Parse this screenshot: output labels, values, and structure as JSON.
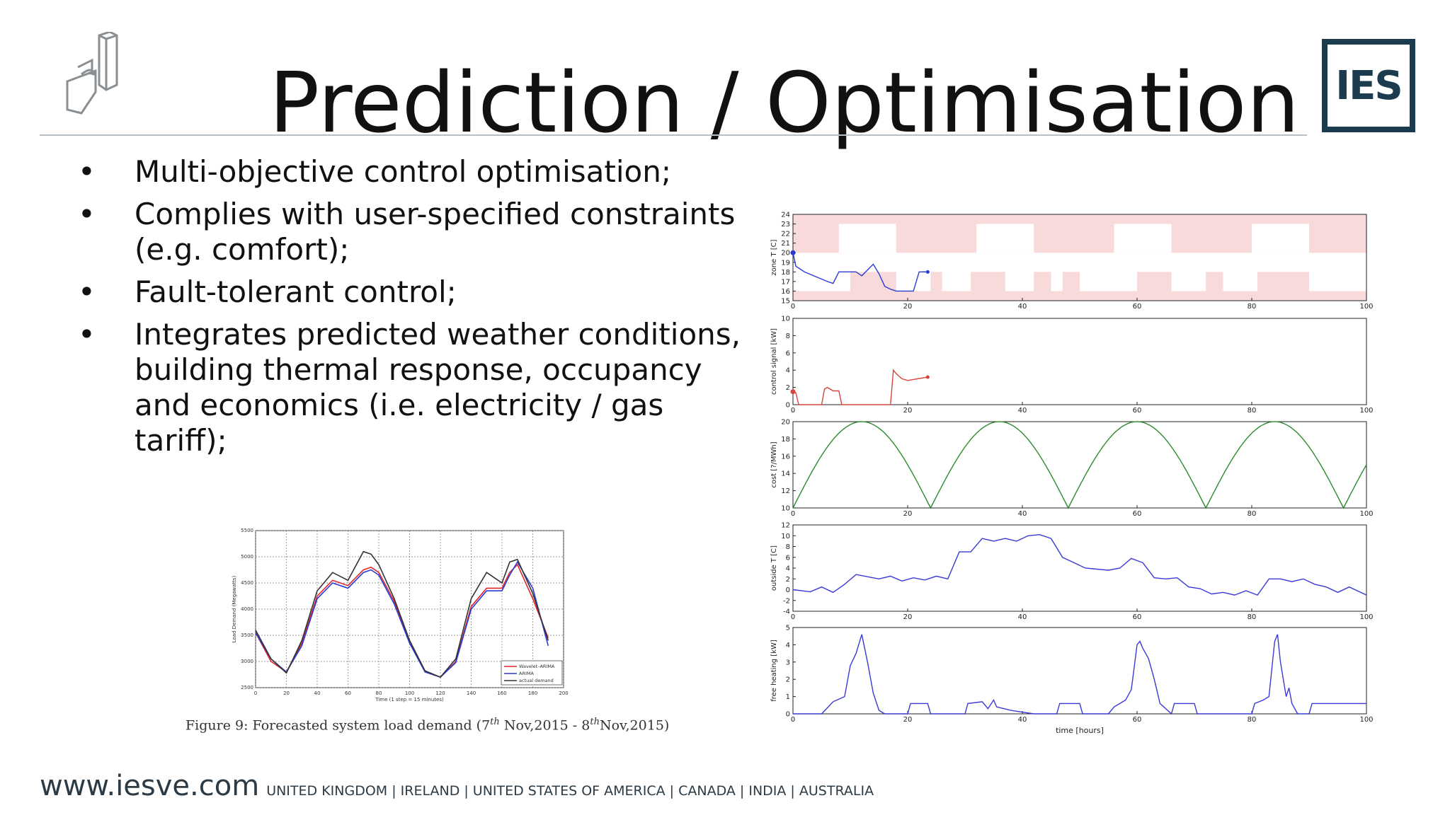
{
  "slide": {
    "title": "Prediction / Optimisation",
    "bullets": [
      "Multi-objective control optimisation;",
      "Complies with user-specified constraints (e.g. comfort);",
      "Fault-tolerant control;",
      "Integrates predicted weather conditions, building thermal response, occupancy and economics (i.e. electricity / gas tariff);"
    ],
    "bullet_symbol": "•",
    "logo_text": "IES",
    "footer": {
      "url": "www.iesve.com",
      "countries": "UNITED KINGDOM | IRELAND | UNITED STATES OF AMERICA | CANADA | INDIA | AUSTRALIA"
    },
    "figure_caption_parts": {
      "prefix": "Figure 9:  Forecasted system load demand (7",
      "sup1": "th",
      "mid": " Nov,2015 - 8",
      "sup2": "th",
      "suffix": "Nov,2015)"
    },
    "colors": {
      "brand": "#1b3b4f",
      "comfort_band": "#f9dada"
    }
  },
  "chart_data": [
    {
      "type": "line",
      "title": "",
      "xlabel": "Time (1 step = 15 minutes)",
      "ylabel": "Load Demand (Megawatts)",
      "xlim": [
        0,
        200
      ],
      "ylim": [
        2500,
        5500
      ],
      "x_ticks": [
        0,
        20,
        40,
        60,
        80,
        100,
        120,
        140,
        160,
        180,
        200
      ],
      "y_ticks": [
        2500,
        3000,
        3500,
        4000,
        4500,
        5000,
        5500
      ],
      "grid": true,
      "legend_position": "bottom-right",
      "x": [
        0,
        10,
        20,
        30,
        40,
        50,
        60,
        70,
        75,
        80,
        90,
        100,
        110,
        120,
        130,
        140,
        150,
        160,
        165,
        170,
        180,
        190
      ],
      "series": [
        {
          "name": "Wavelet–ARIMA",
          "color": "#e0262a",
          "values": [
            3550,
            3000,
            2800,
            3350,
            4250,
            4550,
            4450,
            4750,
            4800,
            4700,
            4150,
            3400,
            2820,
            2700,
            3000,
            4050,
            4400,
            4400,
            4700,
            4850,
            4200,
            3450
          ]
        },
        {
          "name": "ARIMA",
          "color": "#2a3ad6",
          "values": [
            3550,
            3050,
            2800,
            3300,
            4200,
            4500,
            4400,
            4700,
            4750,
            4650,
            4100,
            3350,
            2800,
            2700,
            2980,
            4000,
            4350,
            4350,
            4650,
            4900,
            4400,
            3300
          ]
        },
        {
          "name": "actual demand",
          "color": "#333333",
          "values": [
            3600,
            3050,
            2780,
            3400,
            4350,
            4700,
            4550,
            5100,
            5050,
            4850,
            4200,
            3400,
            2820,
            2700,
            3050,
            4200,
            4700,
            4500,
            4900,
            4950,
            4300,
            3400
          ]
        }
      ]
    },
    {
      "type": "line",
      "ylabel": "zone T [C]",
      "xlim": [
        0,
        100
      ],
      "ylim": [
        15,
        24
      ],
      "x_ticks": [
        0,
        20,
        40,
        60,
        80,
        100
      ],
      "y_ticks": [
        15,
        16,
        17,
        18,
        19,
        20,
        21,
        22,
        23,
        24
      ],
      "comfort_unavailable_upper": {
        "baseline": 20,
        "top": 24,
        "lowered_periods": [
          [
            8,
            18
          ],
          [
            32,
            42
          ],
          [
            56,
            66
          ],
          [
            80,
            90
          ]
        ],
        "lowered_to": 23
      },
      "comfort_unavailable_lower": {
        "baseline": 16,
        "bottom": 15,
        "raised_periods": [
          [
            10,
            18
          ],
          [
            31,
            37
          ],
          [
            60,
            66
          ],
          [
            81,
            90
          ]
        ],
        "raised_to": 18,
        "extra_periods": [
          [
            24,
            26
          ],
          [
            42,
            45
          ],
          [
            47,
            50
          ],
          [
            72,
            75
          ]
        ]
      },
      "series": [
        {
          "name": "",
          "color": "#2a3ad6",
          "x": [
            0,
            0.5,
            2,
            4,
            6,
            7,
            8,
            9,
            10,
            11,
            12,
            13,
            14,
            15,
            16,
            17,
            18,
            19,
            20,
            21,
            22,
            23.5
          ],
          "values": [
            20,
            18.6,
            18,
            17.5,
            17,
            16.8,
            18,
            18,
            18,
            18,
            17.6,
            18.2,
            18.8,
            17.8,
            16.5,
            16.2,
            16.0,
            16.0,
            16.0,
            16.0,
            18,
            18
          ]
        }
      ],
      "end_marker": {
        "x": 23.5,
        "y": 18
      },
      "start_marker": {
        "x": 0,
        "y": 20
      }
    },
    {
      "type": "line",
      "ylabel": "control signal [kW]",
      "xlim": [
        0,
        100
      ],
      "ylim": [
        0,
        10
      ],
      "x_ticks": [
        0,
        20,
        40,
        60,
        80,
        100
      ],
      "y_ticks": [
        0,
        2,
        4,
        6,
        8,
        10
      ],
      "series": [
        {
          "name": "",
          "color": "#d6453a",
          "x": [
            0,
            0.5,
            1,
            5,
            5.5,
            6,
            7,
            8,
            8.5,
            9,
            17,
            17.5,
            18,
            19,
            20,
            23.5
          ],
          "values": [
            1.5,
            1.4,
            0,
            0,
            1.8,
            2.0,
            1.6,
            1.6,
            0,
            0,
            0,
            4.0,
            3.6,
            3.0,
            2.8,
            3.2
          ]
        }
      ],
      "end_marker": {
        "x": 23.5,
        "y": 3.2
      },
      "start_marker": {
        "x": 0,
        "y": 1.5
      }
    },
    {
      "type": "line",
      "ylabel": "cost [?/MWh]",
      "xlim": [
        0,
        100
      ],
      "ylim": [
        10,
        20
      ],
      "x_ticks": [
        0,
        20,
        40,
        60,
        80,
        100
      ],
      "y_ticks": [
        10,
        12,
        14,
        16,
        18,
        20
      ],
      "series": [
        {
          "name": "",
          "color": "#2e8b2e",
          "function": "10 + 10*|sin(pi*x/24)|",
          "x_range": [
            0,
            100
          ]
        }
      ]
    },
    {
      "type": "line",
      "ylabel": "outside T [C]",
      "xlim": [
        0,
        100
      ],
      "ylim": [
        -4,
        12
      ],
      "x_ticks": [
        0,
        20,
        40,
        60,
        80,
        100
      ],
      "y_ticks": [
        -4,
        -2,
        0,
        2,
        4,
        6,
        8,
        10,
        12
      ],
      "series": [
        {
          "name": "",
          "color": "#3a3ad6",
          "x": [
            0,
            3,
            5,
            7,
            9,
            11,
            13,
            15,
            17,
            19,
            21,
            23,
            25,
            27,
            29,
            31,
            33,
            35,
            37,
            39,
            41,
            43,
            45,
            47,
            49,
            51,
            53,
            55,
            57,
            59,
            61,
            63,
            65,
            67,
            69,
            71,
            73,
            75,
            77,
            79,
            81,
            83,
            85,
            87,
            89,
            91,
            93,
            95,
            97,
            100
          ],
          "values": [
            0,
            -0.4,
            0.5,
            -0.5,
            1.0,
            2.8,
            2.4,
            2.0,
            2.5,
            1.6,
            2.2,
            1.8,
            2.5,
            2.0,
            7.0,
            7.0,
            9.5,
            9.0,
            9.5,
            9.0,
            10.0,
            10.2,
            9.5,
            6.0,
            5.0,
            4.0,
            3.8,
            3.6,
            4.0,
            5.8,
            5.0,
            2.2,
            2.0,
            2.2,
            0.5,
            0.2,
            -0.8,
            -0.5,
            -1.0,
            -0.2,
            -1.0,
            2.0,
            2.0,
            1.5,
            2.0,
            1.0,
            0.5,
            -0.5,
            0.5,
            -1.0
          ]
        }
      ]
    },
    {
      "type": "line",
      "ylabel": "free heating [kW]",
      "xlabel": "time [hours]",
      "xlim": [
        0,
        100
      ],
      "ylim": [
        0,
        5
      ],
      "x_ticks": [
        0,
        20,
        40,
        60,
        80,
        100
      ],
      "y_ticks": [
        0,
        1,
        2,
        3,
        4,
        5
      ],
      "series": [
        {
          "name": "",
          "color": "#3a3ad6",
          "x": [
            0,
            5,
            7,
            9,
            10,
            11,
            12,
            13,
            14,
            15,
            16,
            20,
            20.5,
            23.5,
            24,
            30,
            30.5,
            33,
            34,
            35,
            35.5,
            38,
            40,
            42,
            46,
            46.5,
            50,
            50.5,
            55,
            56,
            57,
            58,
            59,
            60,
            60.5,
            61,
            62,
            63,
            64,
            66,
            66.5,
            70,
            70.5,
            74,
            80,
            80.5,
            82,
            83,
            84,
            84.5,
            85,
            86,
            86.5,
            87,
            88,
            90,
            90.5,
            94,
            100
          ],
          "values": [
            0,
            0,
            0.7,
            1.0,
            2.8,
            3.5,
            4.6,
            3.0,
            1.2,
            0.2,
            0,
            0,
            0.6,
            0.6,
            0,
            0,
            0.6,
            0.7,
            0.3,
            0.8,
            0.4,
            0.2,
            0.1,
            0,
            0,
            0.6,
            0.6,
            0,
            0,
            0.4,
            0.6,
            0.8,
            1.4,
            4.0,
            4.2,
            3.8,
            3.2,
            2.0,
            0.6,
            0,
            0.6,
            0.6,
            0,
            0,
            0,
            0.6,
            0.8,
            1.0,
            4.2,
            4.6,
            3.0,
            1.0,
            1.5,
            0.6,
            0,
            0,
            0.6,
            0.6,
            0.6
          ]
        }
      ]
    }
  ]
}
